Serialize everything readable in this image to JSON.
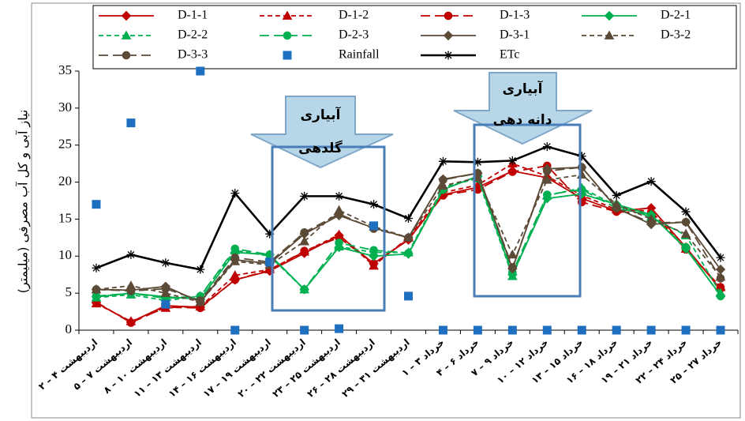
{
  "chart_data": {
    "type": "line",
    "y_label": "نیاز آبی و کل آب مصرفی (میلیمتر)",
    "categories": [
      "۲ – ۴ اردیبهشت",
      "۵ – ۷ اردیبهشت",
      "۸ – ۱۰ اردیبهشت",
      "۱۱ – ۱۳ اردیبهشت",
      "۱۴ – ۱۶ اردیبهشت",
      "۱۷ – ۱۹ اردیبهشت",
      "۲۰ – ۲۲ اردیبهشت",
      "۲۳ – ۲۵ اردیبهشت",
      "۲۶ – ۲۸ اردیبهشت",
      "۲۹ – ۳۱ اردیبهشت",
      "۱ – ۳ خرداد",
      "۴ – ۶ خرداد",
      "۷ – ۹ خرداد",
      "۱۰ – ۱۲ خرداد",
      "۱۳ – ۱۵ خرداد",
      "۱۶ – ۱۸ خرداد",
      "۱۹ – ۲۱ خرداد",
      "۲۲ – ۲۴ خرداد",
      "۲۵ – ۲۷ خرداد"
    ],
    "ylim": [
      0,
      35
    ],
    "yticks": [
      0,
      5,
      10,
      15,
      20,
      25,
      30,
      35
    ],
    "series": [
      {
        "name": "D-1-1",
        "color": "#c00000",
        "dash": "solid",
        "marker": "diamond",
        "values": [
          3.7,
          1.1,
          3.3,
          3.1,
          6.8,
          8.0,
          10.4,
          12.8,
          9.0,
          12.2,
          18.3,
          19.3,
          21.5,
          20.6,
          17.8,
          16.1,
          16.5,
          11.2,
          5.5
        ]
      },
      {
        "name": "D-1-2",
        "color": "#c00000",
        "dash": "dash",
        "marker": "triangle",
        "values": [
          3.6,
          1.2,
          3.0,
          3.2,
          7.4,
          8.2,
          10.6,
          12.9,
          8.7,
          12.5,
          18.6,
          19.6,
          22.5,
          20.8,
          18.2,
          16.3,
          16.1,
          11.0,
          5.8
        ]
      },
      {
        "name": "D-1-3",
        "color": "#c00000",
        "dash": "longdash",
        "marker": "circle",
        "values": [
          3.8,
          1.0,
          3.1,
          3.0,
          6.8,
          8.1,
          10.7,
          12.5,
          9.0,
          12.3,
          18.2,
          19.0,
          21.4,
          22.2,
          17.3,
          16.0,
          15.8,
          10.9,
          5.8
        ]
      },
      {
        "name": "D-2-1",
        "color": "#00b050",
        "dash": "solid",
        "marker": "diamond",
        "values": [
          4.5,
          5.0,
          4.5,
          4.2,
          10.5,
          10.2,
          5.5,
          11.2,
          10.0,
          10.3,
          19.0,
          20.8,
          7.5,
          17.8,
          18.4,
          17.0,
          15.6,
          11.0,
          4.7
        ]
      },
      {
        "name": "D-2-2",
        "color": "#00b050",
        "dash": "dash",
        "marker": "triangle",
        "values": [
          4.4,
          4.8,
          4.0,
          4.6,
          10.8,
          10.0,
          5.5,
          11.3,
          10.5,
          10.5,
          19.3,
          20.5,
          7.3,
          18.2,
          19.2,
          16.8,
          15.3,
          12.8,
          5.0
        ]
      },
      {
        "name": "D-2-3",
        "color": "#00b050",
        "dash": "longdash",
        "marker": "circle",
        "values": [
          4.6,
          5.0,
          4.3,
          4.6,
          11.0,
          10.2,
          5.5,
          11.8,
          10.8,
          10.4,
          19.0,
          20.8,
          7.8,
          18.3,
          19.0,
          16.5,
          15.5,
          11.2,
          4.6
        ]
      },
      {
        "name": "D-3-1",
        "color": "#5b4a36",
        "dash": "solid",
        "marker": "diamond",
        "values": [
          5.5,
          5.4,
          5.9,
          3.8,
          9.5,
          9.0,
          13.0,
          15.5,
          13.8,
          12.5,
          20.4,
          21.2,
          8.3,
          21.8,
          22.0,
          16.5,
          14.3,
          14.6,
          8.2
        ]
      },
      {
        "name": "D-3-2",
        "color": "#5b4a36",
        "dash": "dash",
        "marker": "triangle",
        "values": [
          5.5,
          6.0,
          5.0,
          3.8,
          9.3,
          8.8,
          12.0,
          16.2,
          14.0,
          12.5,
          19.5,
          20.6,
          10.2,
          20.3,
          21.0,
          17.0,
          15.0,
          13.0,
          7.2
        ]
      },
      {
        "name": "D-3-3",
        "color": "#5b4a36",
        "dash": "longdash",
        "marker": "circle",
        "values": [
          5.5,
          5.3,
          5.6,
          4.0,
          9.8,
          9.2,
          13.2,
          15.7,
          13.7,
          12.5,
          20.3,
          21.2,
          8.5,
          21.5,
          22.0,
          16.5,
          14.5,
          14.6,
          7.0
        ]
      },
      {
        "name": "Rainfall",
        "color": "#1f6fc0",
        "dash": "none",
        "marker": "square",
        "values": [
          17,
          28,
          3.5,
          35,
          0,
          9.2,
          0,
          0.2,
          14.1,
          4.6,
          0,
          0,
          0,
          0,
          0,
          0,
          0,
          0,
          0
        ]
      },
      {
        "name": "ETc",
        "color": "#000000",
        "dash": "solid",
        "marker": "star",
        "values": [
          8.4,
          10.2,
          9.1,
          8.2,
          18.5,
          13.0,
          18.1,
          18.1,
          17.0,
          15.1,
          22.8,
          22.7,
          22.9,
          24.8,
          23.5,
          18.2,
          20.1,
          16.0,
          9.8
        ]
      }
    ],
    "annotations": [
      {
        "lines": [
          "آبیاری",
          "گلدهی"
        ]
      },
      {
        "lines": [
          "آبیاری",
          "دانه دهی"
        ]
      }
    ]
  }
}
